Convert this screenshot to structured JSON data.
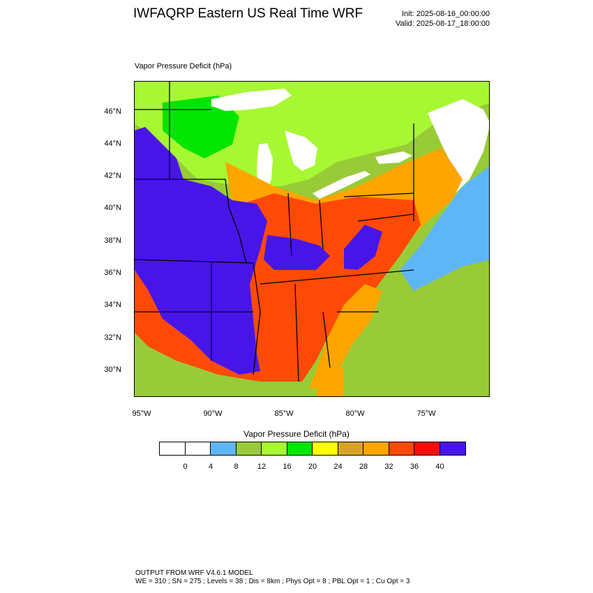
{
  "header": {
    "title": "IWFAQRP Eastern US Real Time WRF",
    "init": "Init: 2025-08-16_00:00:00",
    "valid": "Valid: 2025-08-17_18:00:00"
  },
  "plot": {
    "subtitle": "Vapor Pressure Deficit   (hPa)",
    "lat_labels": [
      "46°N",
      "44°N",
      "42°N",
      "40°N",
      "38°N",
      "36°N",
      "34°N",
      "32°N",
      "30°N"
    ],
    "lon_labels": [
      "95°W",
      "90°W",
      "85°W",
      "80°W",
      "75°W"
    ]
  },
  "colorbar": {
    "title": "Vapor Pressure Deficit   (hPa)",
    "colors": [
      "#ffffff",
      "#ffffff",
      "#5fb6f7",
      "#98cb37",
      "#a7f732",
      "#00e600",
      "#ffff00",
      "#d9a12a",
      "#ffa500",
      "#ff4a07",
      "#f50d0d",
      "#4815e8"
    ],
    "tick_labels": [
      "0",
      "4",
      "8",
      "12",
      "16",
      "20",
      "24",
      "28",
      "32",
      "36",
      "40"
    ]
  },
  "footer": {
    "line1": "OUTPUT FROM WRF V4.6.1 MODEL",
    "line2": "WE = 310 ; SN = 275 ; Levels = 38 ; Dis = 8km ; Phys Opt = 8 ; PBL Opt = 1 ; Cu Opt = 3"
  }
}
